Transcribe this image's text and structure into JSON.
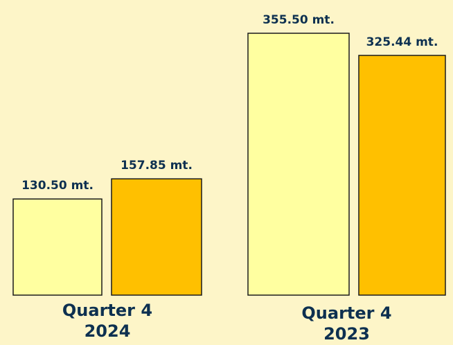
{
  "chart_data": {
    "type": "bar",
    "categories": [
      [
        "Quarter 4",
        "2024"
      ],
      [
        "Quarter 4",
        "2023"
      ]
    ],
    "series": [
      {
        "color": "#ffffa0",
        "values": [
          130.5,
          355.5
        ],
        "value_labels": [
          "130.50 mt.",
          "355.50 mt."
        ]
      },
      {
        "color": "#ffc000",
        "values": [
          157.85,
          325.44
        ],
        "value_labels": [
          "157.85 mt.",
          "325.44 mt."
        ]
      }
    ]
  }
}
